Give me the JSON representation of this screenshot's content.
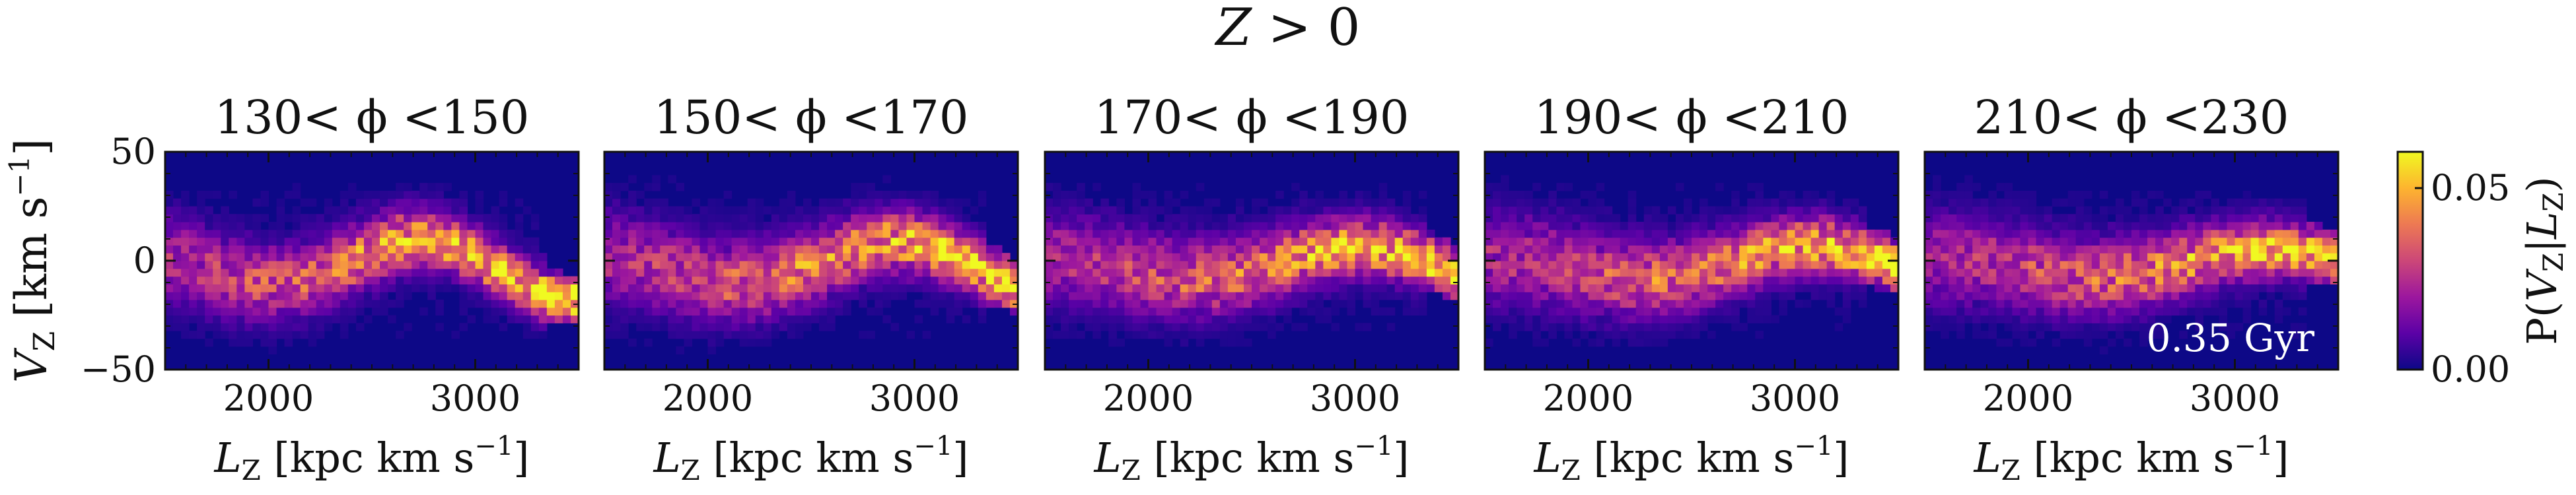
{
  "figure": {
    "suptitle_var": "Z",
    "suptitle_rest": " > 0",
    "colorbar_label_prefix": "P(",
    "colorbar_label_var1": "V",
    "colorbar_label_sub1": "Z",
    "colorbar_label_mid": "|",
    "colorbar_label_var2": "L",
    "colorbar_label_sub2": "Z",
    "colorbar_label_suffix": ")",
    "annotation": "0.35 Gyr"
  },
  "colors": {
    "colormap": "plasma",
    "background_cell": "#0d0887",
    "stops": [
      "#0d0887",
      "#5c01a6",
      "#9c179e",
      "#cc4778",
      "#ed7953",
      "#fdb42f",
      "#f0f921"
    ]
  },
  "chart_data": {
    "type": "heatmap",
    "xlabel_var": "L",
    "xlabel_sub": "Z",
    "xlabel_unit": " [kpc km s",
    "xlabel_exp": "−1",
    "xlabel_close": "]",
    "ylabel_var": "V",
    "ylabel_sub": "Z",
    "ylabel_unit": " [km s",
    "ylabel_exp": "−1",
    "ylabel_close": "]",
    "xlim": [
      1500,
      3500
    ],
    "ylim": [
      -50,
      50
    ],
    "xticks": [
      2000,
      3000
    ],
    "xtick_labels": [
      "2000",
      "3000"
    ],
    "yticks": [
      -50,
      0,
      50
    ],
    "ytick_labels": [
      "−50",
      "0",
      "50"
    ],
    "colorbar": {
      "range": [
        0,
        0.06
      ],
      "ticks": [
        0,
        0.05
      ],
      "tick_labels": [
        "0.00",
        "0.05"
      ]
    },
    "panels": [
      {
        "title": "130< ϕ <150",
        "wave_amp": 11,
        "wave_period": 1450,
        "wave_phase": 2.6,
        "band_width": 11,
        "peak": 0.058
      },
      {
        "title": "150< ϕ <170",
        "wave_amp": 9,
        "wave_period": 1550,
        "wave_phase": 2.2,
        "band_width": 12,
        "peak": 0.056
      },
      {
        "title": "170< ϕ <190",
        "wave_amp": 7,
        "wave_period": 1600,
        "wave_phase": 2.0,
        "band_width": 12,
        "peak": 0.054
      },
      {
        "title": "190< ϕ <210",
        "wave_amp": 7,
        "wave_period": 1650,
        "wave_phase": 1.9,
        "band_width": 12,
        "peak": 0.054
      },
      {
        "title": "210< ϕ <230",
        "wave_amp": 6,
        "wave_period": 1700,
        "wave_phase": 1.8,
        "band_width": 12,
        "peak": 0.052
      }
    ]
  }
}
